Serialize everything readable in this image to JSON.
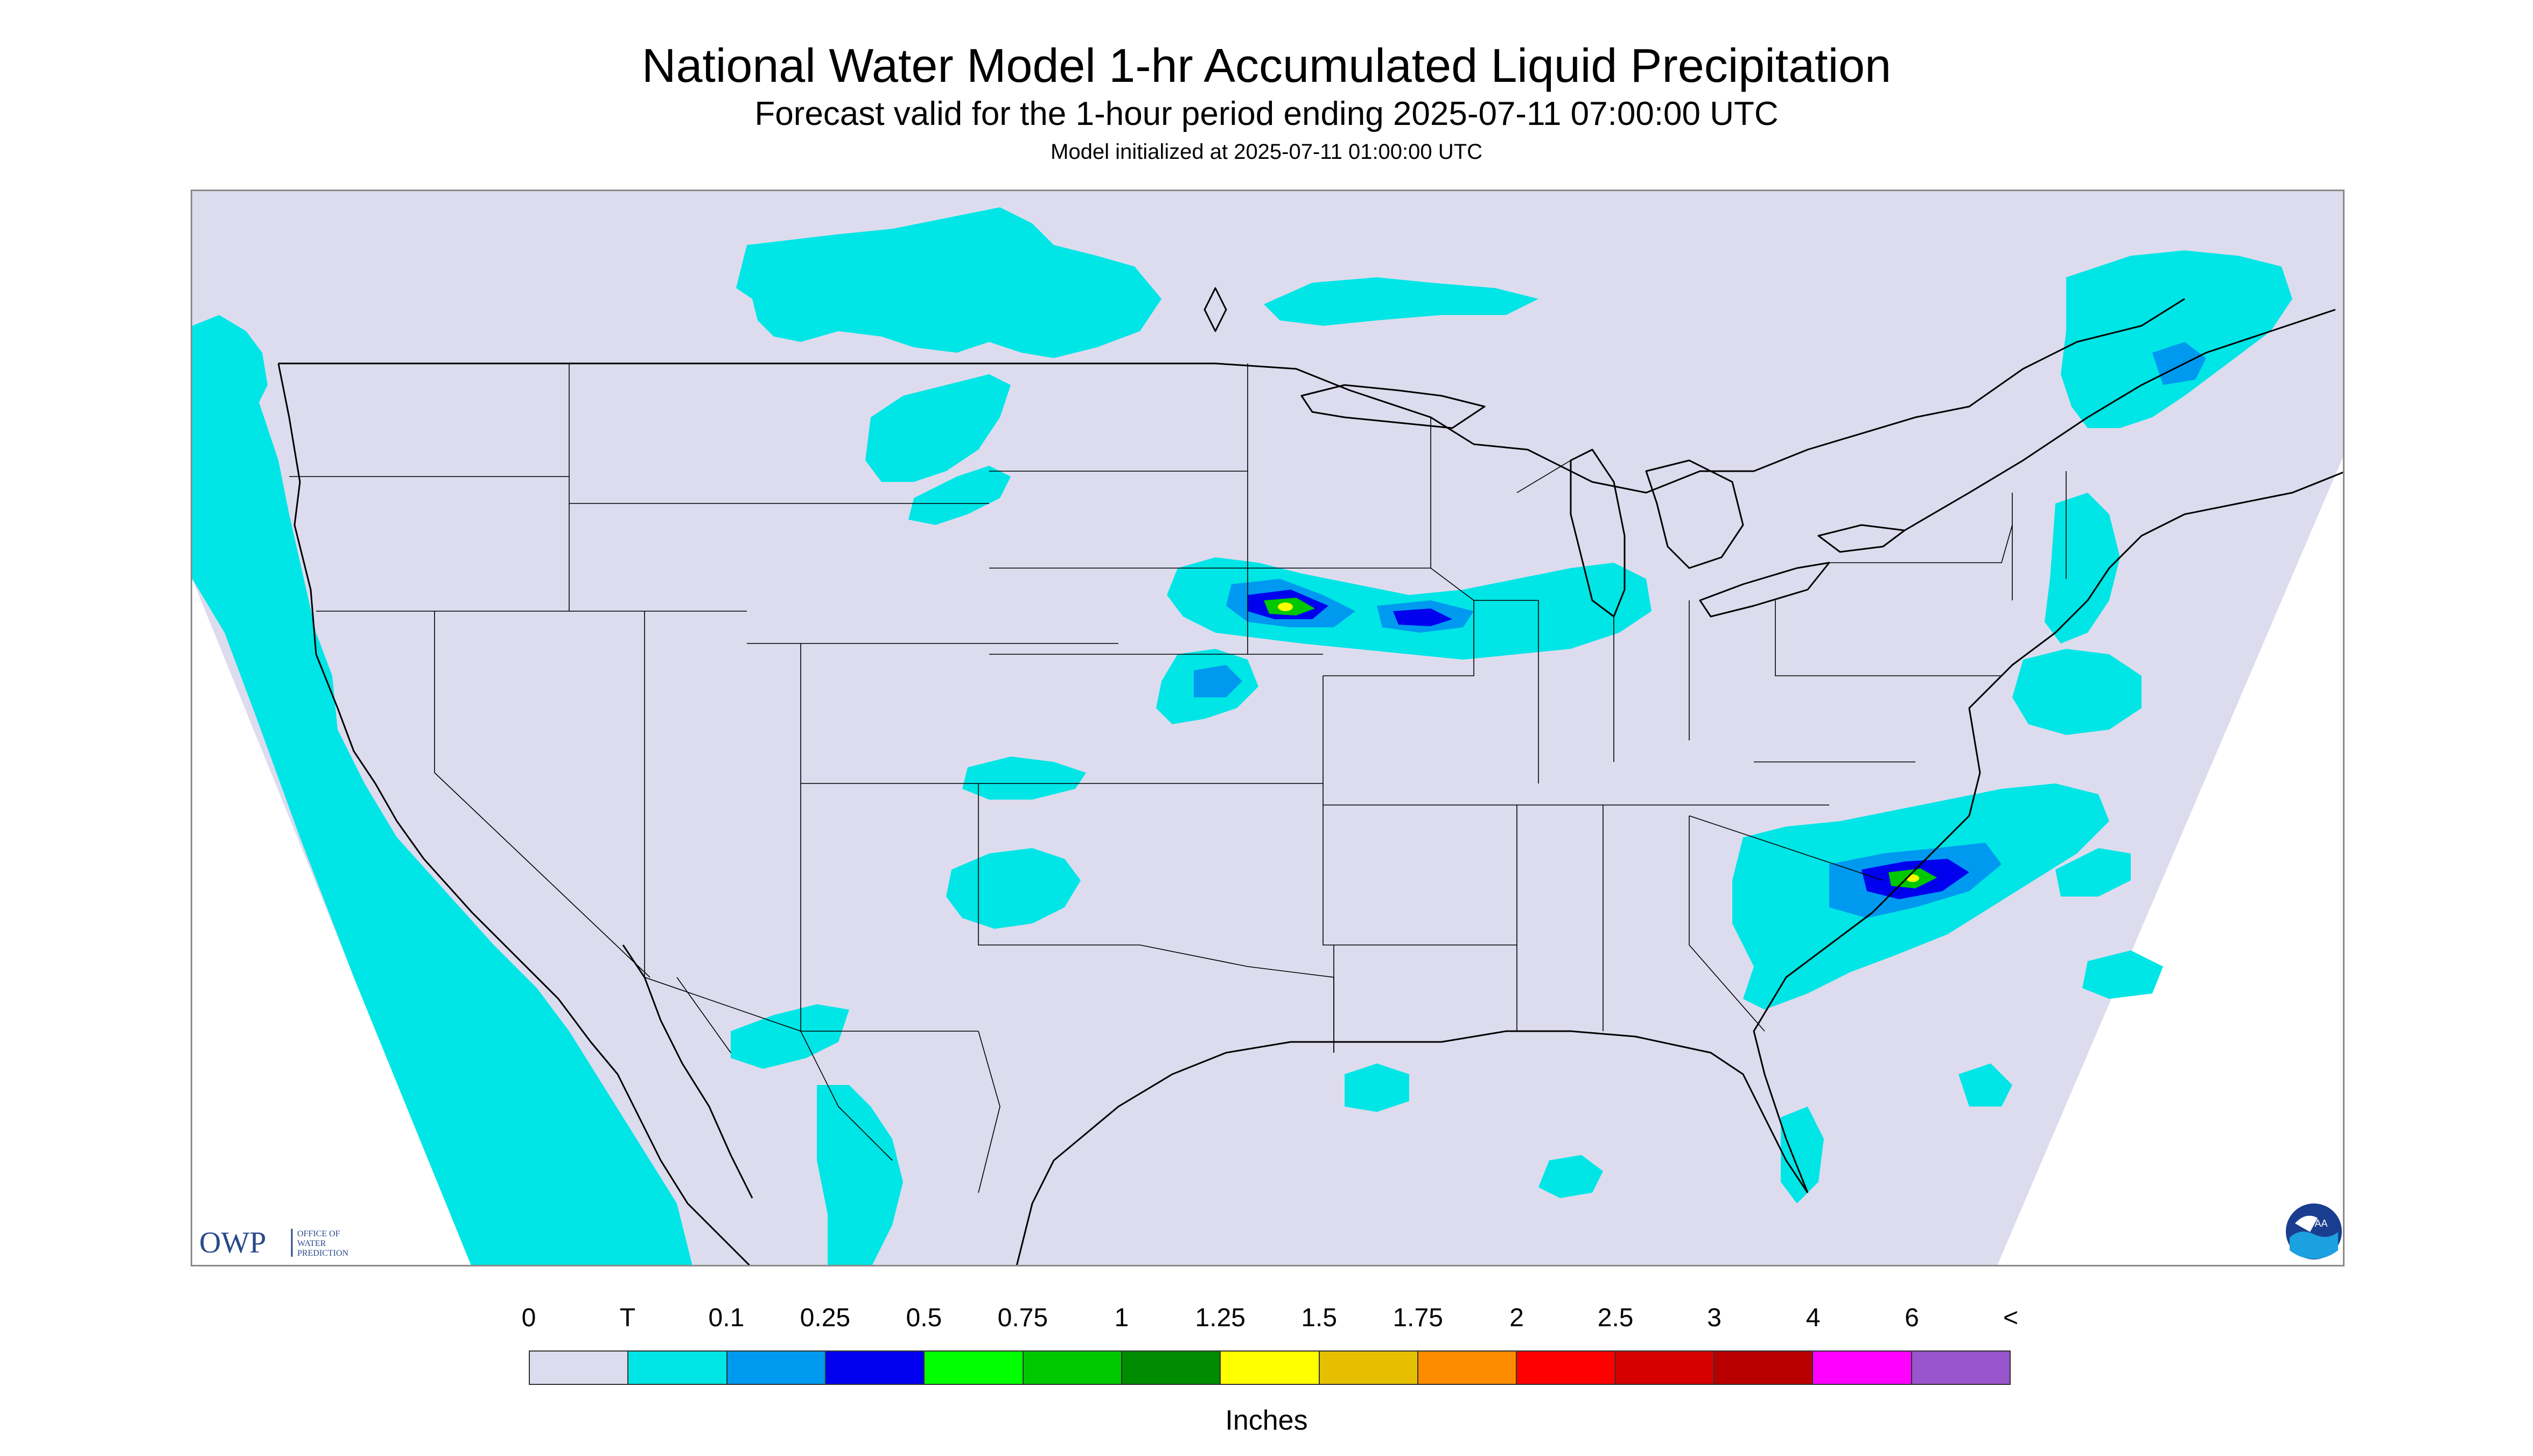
{
  "title": "National Water Model 1-hr Accumulated Liquid Precipitation",
  "subtitle": "Forecast valid for the 1-hour period ending 2025-07-11 07:00:00 UTC",
  "init_line": "Model initialized at 2025-07-11 01:00:00 UTC",
  "legend": {
    "units": "Inches",
    "labels": [
      "0",
      "T",
      "0.1",
      "0.25",
      "0.5",
      "0.75",
      "1",
      "1.25",
      "1.5",
      "1.75",
      "2",
      "2.5",
      "3",
      "4",
      "6",
      "<"
    ],
    "colors": [
      "#dcdcee",
      "#00e5e5",
      "#0099f0",
      "#0000ee",
      "#00ff00",
      "#00c800",
      "#008c00",
      "#ffff00",
      "#e6c000",
      "#ff8c00",
      "#ff0000",
      "#d70000",
      "#b90000",
      "#ff00ff",
      "#9955cc"
    ]
  },
  "map": {
    "background_color": "#dcdcee",
    "offgrid_color": "#ffffff",
    "coast_color": "#000000",
    "precip_trace_color": "#00e5e5",
    "precip_light_color": "#0099f0",
    "precip_mid_color": "#0000ee",
    "precip_heavy_color": "#00c800",
    "precip_extreme_color": "#ffff00"
  },
  "logos": {
    "owp_mark": "OWP",
    "owp_text": [
      "OFFICE OF",
      "WATER",
      "PREDICTION"
    ],
    "noaa_text": "NOAA"
  }
}
